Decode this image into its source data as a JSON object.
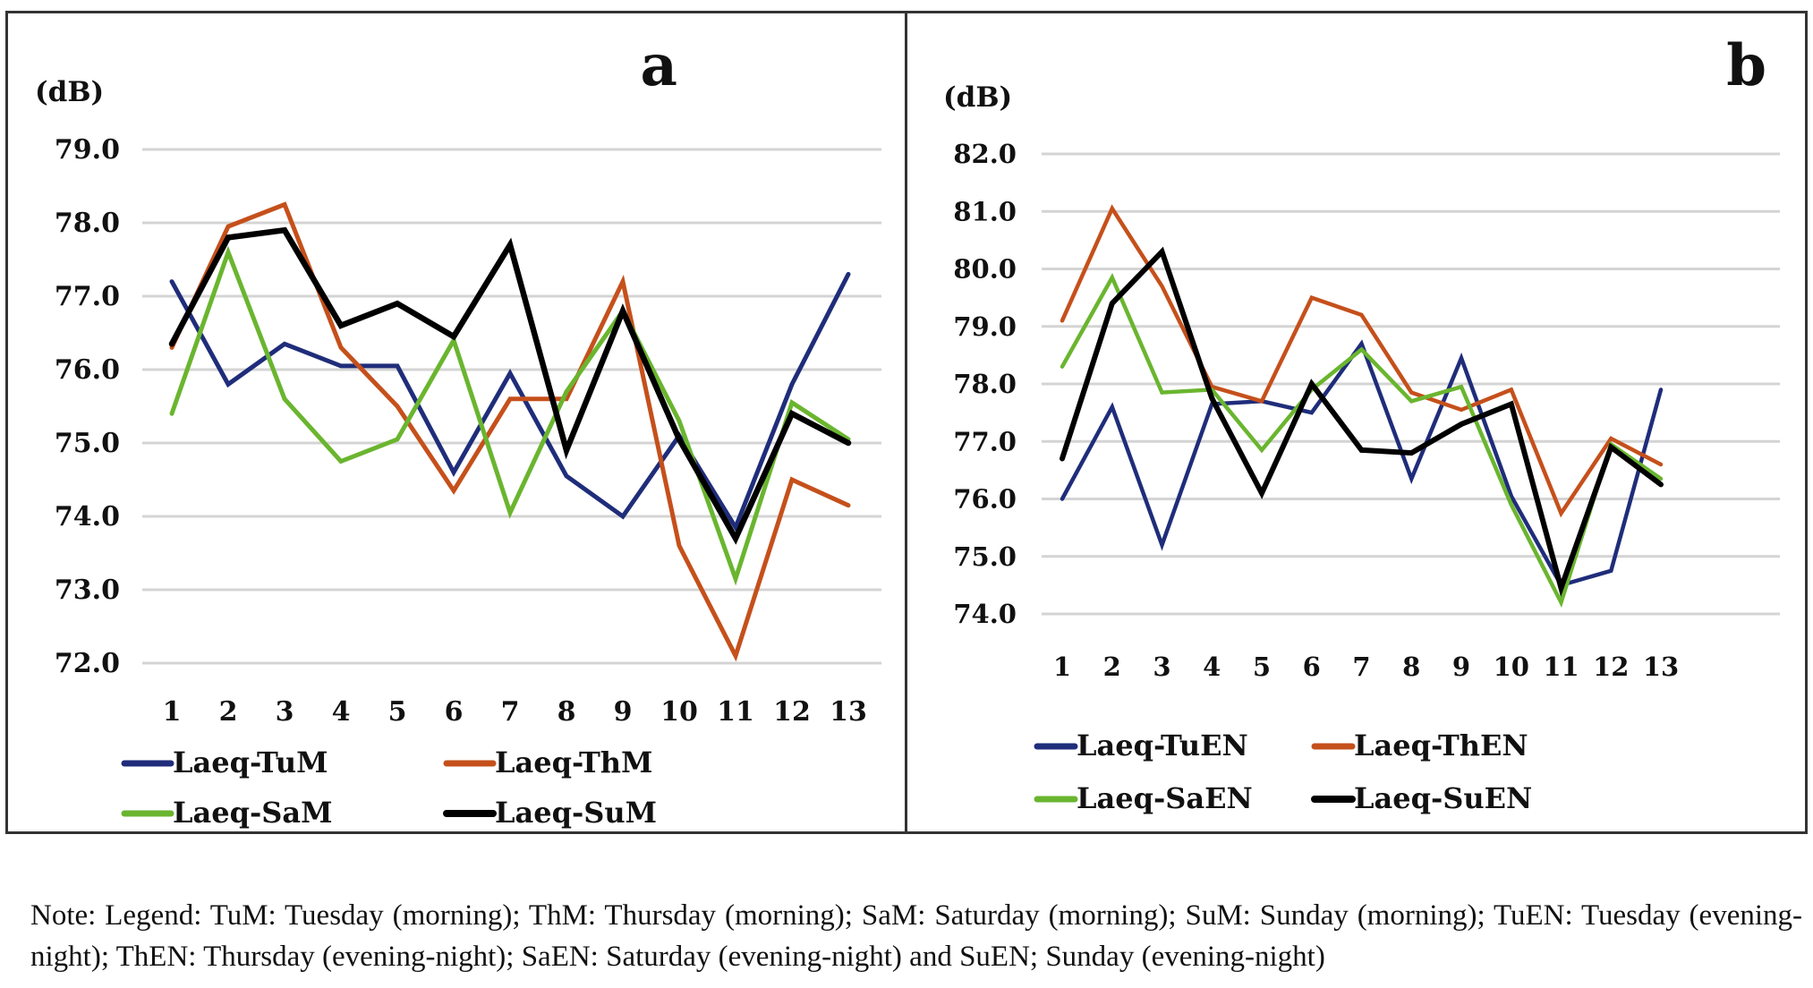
{
  "chart_data": [
    {
      "panel_label": "a",
      "type": "line",
      "title": "",
      "ylabel": "(dB)",
      "xlabel": "",
      "x": [
        1,
        2,
        3,
        4,
        5,
        6,
        7,
        8,
        9,
        10,
        11,
        12,
        13
      ],
      "x_tick_labels": [
        "1",
        "2",
        "3",
        "4",
        "5",
        "6",
        "7",
        "8",
        "9",
        "10",
        "11",
        "12",
        "13"
      ],
      "ylim": [
        72.0,
        79.0
      ],
      "y_ticks": [
        79.0,
        78.0,
        77.0,
        76.0,
        75.0,
        74.0,
        73.0,
        72.0
      ],
      "y_tick_labels": [
        "79.0",
        "78.0",
        "77.0",
        "76.0",
        "75.0",
        "74.0",
        "73.0",
        "72.0"
      ],
      "grid": true,
      "legend_position": "bottom",
      "series": [
        {
          "name": "Laeq-TuM",
          "color": "#1f2d7a",
          "values": [
            77.2,
            75.8,
            76.35,
            76.05,
            76.05,
            74.6,
            75.95,
            74.55,
            74.0,
            75.1,
            73.85,
            75.8,
            77.3
          ]
        },
        {
          "name": "Laeq-ThM",
          "color": "#c5501b",
          "values": [
            76.3,
            77.95,
            78.25,
            76.3,
            75.5,
            74.35,
            75.6,
            75.6,
            77.2,
            73.6,
            72.1,
            74.5,
            74.15
          ]
        },
        {
          "name": "Laeq-SaM",
          "color": "#6ab52f",
          "values": [
            75.4,
            77.6,
            75.6,
            74.75,
            75.05,
            76.4,
            74.05,
            75.7,
            76.8,
            75.3,
            73.15,
            75.55,
            75.05
          ]
        },
        {
          "name": "Laeq-SuM",
          "color": "#000000",
          "values": [
            76.35,
            77.8,
            77.9,
            76.6,
            76.9,
            76.45,
            77.7,
            74.9,
            76.8,
            75.05,
            73.7,
            75.4,
            75.0
          ]
        }
      ]
    },
    {
      "panel_label": "b",
      "type": "line",
      "title": "",
      "ylabel": "(dB)",
      "xlabel": "",
      "x": [
        1,
        2,
        3,
        4,
        5,
        6,
        7,
        8,
        9,
        10,
        11,
        12,
        13
      ],
      "x_tick_labels": [
        "1",
        "2",
        "3",
        "4",
        "5",
        "6",
        "7",
        "8",
        "9",
        "10",
        "11",
        "12",
        "13"
      ],
      "ylim": [
        74.0,
        82.0
      ],
      "y_ticks": [
        82.0,
        81.0,
        80.0,
        79.0,
        78.0,
        77.0,
        76.0,
        75.0,
        74.0
      ],
      "y_tick_labels": [
        "82.0",
        "81.0",
        "80.0",
        "79.0",
        "78.0",
        "77.0",
        "76.0",
        "75.0",
        "74.0"
      ],
      "grid": true,
      "legend_position": "bottom",
      "series": [
        {
          "name": "Laeq-TuEN",
          "color": "#1f2d7a",
          "values": [
            76.0,
            77.6,
            75.2,
            77.65,
            77.7,
            77.5,
            78.7,
            76.35,
            78.45,
            76.05,
            74.5,
            74.75,
            77.9
          ]
        },
        {
          "name": "Laeq-ThEN",
          "color": "#c5501b",
          "values": [
            79.1,
            81.05,
            79.7,
            77.95,
            77.7,
            79.5,
            79.2,
            77.85,
            77.55,
            77.9,
            75.75,
            77.05,
            76.6
          ]
        },
        {
          "name": "Laeq-SaEN",
          "color": "#6ab52f",
          "values": [
            78.3,
            79.85,
            77.85,
            77.9,
            76.85,
            77.9,
            78.6,
            77.7,
            77.95,
            75.9,
            74.2,
            76.95,
            76.35
          ]
        },
        {
          "name": "Laeq-SuEN",
          "color": "#000000",
          "values": [
            76.7,
            79.4,
            80.3,
            77.75,
            76.1,
            78.0,
            76.85,
            76.8,
            77.3,
            77.65,
            74.45,
            76.9,
            76.25
          ]
        }
      ]
    }
  ],
  "note": "Note: Legend: TuM: Tuesday (morning); ThM: Thursday (morning); SaM: Saturday (morning); SuM: Sunday (morning); TuEN: Tuesday (evening-night); ThEN: Thursday (evening-night); SaEN: Saturday (evening-night) and  SuEN; Sunday (evening-night)"
}
